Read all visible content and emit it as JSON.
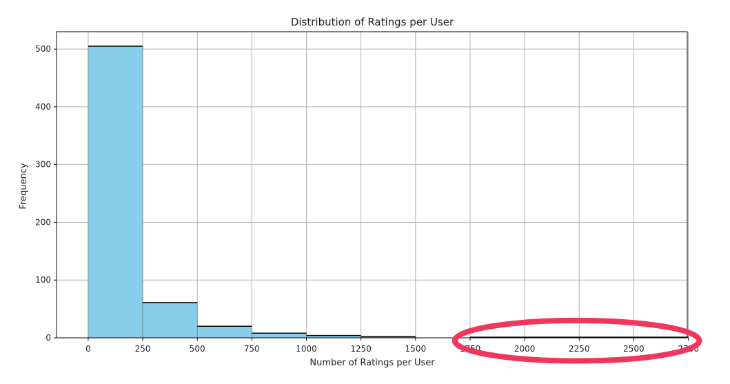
{
  "chart_data": {
    "type": "bar",
    "title": "Distribution of Ratings per User",
    "xlabel": "Number of Ratings per User",
    "ylabel": "Frequency",
    "xlim": [
      -145,
      2745
    ],
    "ylim": [
      0,
      530
    ],
    "grid": true,
    "bin_width": 250,
    "bins": [
      {
        "start": 0,
        "end": 250,
        "value": 505
      },
      {
        "start": 250,
        "end": 500,
        "value": 61
      },
      {
        "start": 500,
        "end": 750,
        "value": 20
      },
      {
        "start": 750,
        "end": 1000,
        "value": 8
      },
      {
        "start": 1000,
        "end": 1250,
        "value": 4
      },
      {
        "start": 1250,
        "end": 1500,
        "value": 2
      },
      {
        "start": 1500,
        "end": 1750,
        "value": 0
      },
      {
        "start": 1750,
        "end": 2000,
        "value": 1
      },
      {
        "start": 2000,
        "end": 2250,
        "value": 1
      },
      {
        "start": 2250,
        "end": 2500,
        "value": 1
      },
      {
        "start": 2500,
        "end": 2750,
        "value": 1
      }
    ],
    "xticks": [
      0,
      250,
      500,
      750,
      1000,
      1250,
      1500,
      1750,
      2000,
      2250,
      2500,
      2750
    ],
    "yticks": [
      0,
      100,
      200,
      300,
      400,
      500
    ],
    "colors": {
      "bar_fill": "#87ceeb",
      "bar_edge": "#000000",
      "grid": "#b0b0b0",
      "annotation": "#f0365d"
    }
  },
  "annotation": {
    "shape": "ellipse",
    "color": "#f0365d",
    "x_range": [
      1680,
      2800
    ],
    "y_range": [
      -40,
      30
    ]
  }
}
